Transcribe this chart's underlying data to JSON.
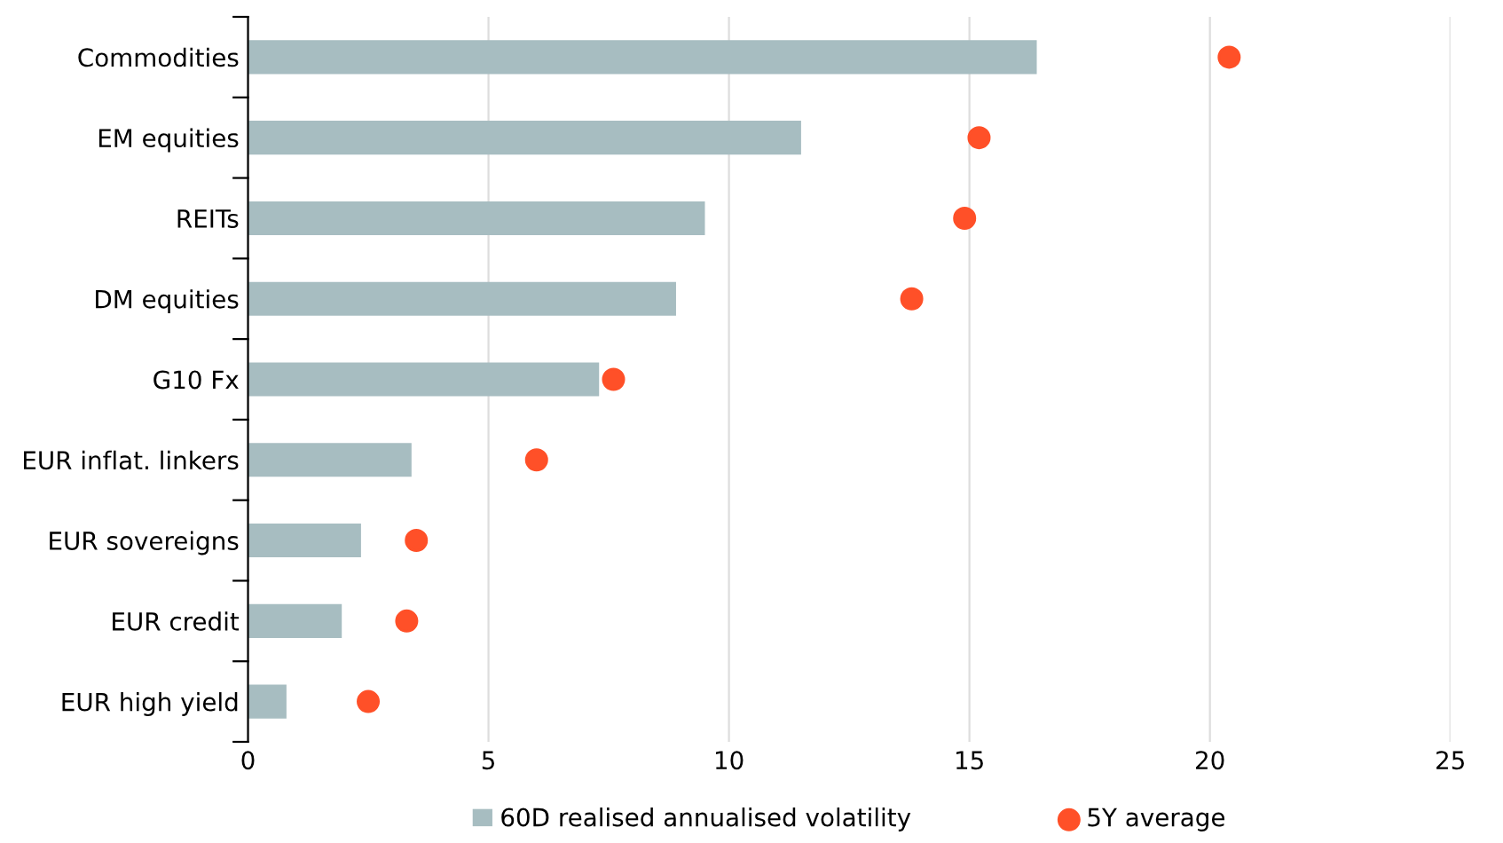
{
  "chart_data": {
    "type": "bar",
    "orientation": "horizontal",
    "categories": [
      "Commodities",
      "EM equities",
      "REITs",
      "DM equities",
      "G10 Fx",
      "EUR inflat. linkers",
      "EUR sovereigns",
      "EUR credit",
      "EUR high yield"
    ],
    "series": [
      {
        "name": "60D realised annualised volatility",
        "color": "#a7bdc1",
        "values": [
          16.4,
          11.5,
          9.5,
          8.9,
          7.3,
          3.4,
          2.35,
          1.95,
          0.8
        ]
      },
      {
        "name": "5Y average",
        "type": "scatter",
        "color": "#ff5028",
        "values": [
          20.4,
          15.2,
          14.9,
          13.8,
          7.6,
          6.0,
          3.5,
          3.3,
          2.5
        ]
      }
    ],
    "xlim": [
      0,
      25
    ],
    "xticks": [
      0,
      5,
      10,
      15,
      20,
      25
    ],
    "grid": "x",
    "legend": "bottom",
    "marker": "circle"
  }
}
